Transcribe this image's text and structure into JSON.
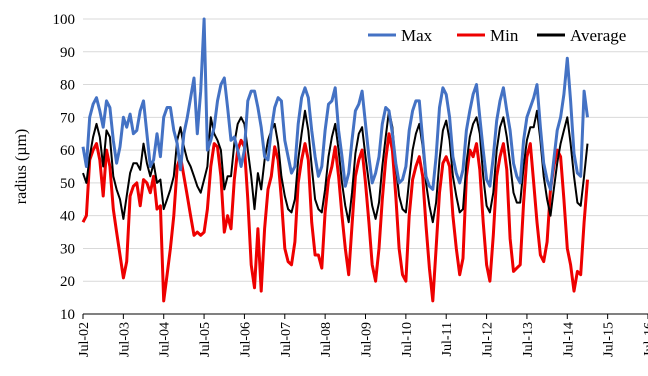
{
  "chart_data": {
    "type": "line",
    "ylabel": "radius (µm)",
    "ylim": [
      10,
      100
    ],
    "yticks": [
      "10",
      "20",
      "30",
      "40",
      "50",
      "60",
      "70",
      "80",
      "90",
      "100"
    ],
    "xlim": [
      "2002-07",
      "2016-07"
    ],
    "xticks": [
      "Jul-02",
      "Jul-03",
      "Jul-04",
      "Jul-05",
      "Jul-06",
      "Jul-07",
      "Jul-08",
      "Jul-09",
      "Jul-10",
      "Jul-11",
      "Jul-12",
      "Jul-13",
      "Jul-14",
      "Jul-15",
      "Jul-16"
    ],
    "grid": "horizontal",
    "legend_position": "top-right",
    "colors": {
      "Max": "#4472c4",
      "Min": "#ee0000",
      "Average": "#000000"
    },
    "x_start_month": "2002-07",
    "series": [
      {
        "name": "Max",
        "values": [
          61,
          55,
          70,
          74,
          76,
          72,
          67,
          75,
          73,
          63,
          56,
          61,
          70,
          67,
          71,
          65,
          66,
          72,
          75,
          65,
          55,
          57,
          65,
          58,
          70,
          73,
          73,
          66,
          62,
          54,
          65,
          70,
          76,
          82,
          65,
          78,
          100,
          60,
          63,
          67,
          75,
          80,
          82,
          73,
          63,
          64,
          60,
          55,
          60,
          75,
          78,
          78,
          73,
          67,
          58,
          57,
          66,
          73,
          76,
          75,
          63,
          58,
          53,
          55,
          68,
          76,
          79,
          76,
          66,
          58,
          52,
          55,
          66,
          74,
          75,
          79,
          66,
          58,
          49,
          53,
          63,
          72,
          74,
          78,
          68,
          58,
          50,
          53,
          58,
          68,
          73,
          72,
          65,
          56,
          50,
          51,
          55,
          66,
          72,
          75,
          75,
          63,
          52,
          49,
          48,
          58,
          73,
          79,
          77,
          70,
          58,
          53,
          50,
          54,
          66,
          72,
          77,
          80,
          70,
          60,
          51,
          49,
          58,
          69,
          75,
          79,
          72,
          66,
          56,
          52,
          50,
          63,
          70,
          73,
          76,
          80,
          67,
          56,
          51,
          48,
          57,
          66,
          70,
          77,
          88,
          75,
          59,
          53,
          52,
          78,
          70
        ]
      },
      {
        "name": "Min",
        "values": [
          38,
          40,
          57,
          60,
          62,
          57,
          46,
          60,
          55,
          42,
          35,
          28,
          21,
          26,
          46,
          49,
          50,
          43,
          51,
          50,
          47,
          52,
          42,
          43,
          14,
          22,
          30,
          40,
          55,
          58,
          52,
          46,
          40,
          34,
          35,
          34,
          35,
          42,
          55,
          62,
          61,
          52,
          35,
          40,
          36,
          51,
          60,
          63,
          61,
          45,
          25,
          18,
          36,
          17,
          36,
          48,
          52,
          61,
          57,
          45,
          30,
          26,
          25,
          32,
          50,
          57,
          62,
          57,
          38,
          28,
          28,
          24,
          41,
          51,
          55,
          61,
          52,
          40,
          30,
          22,
          37,
          52,
          57,
          60,
          50,
          38,
          25,
          20,
          30,
          45,
          57,
          65,
          60,
          46,
          30,
          22,
          20,
          40,
          51,
          55,
          58,
          52,
          37,
          24,
          14,
          30,
          47,
          56,
          58,
          55,
          40,
          30,
          22,
          27,
          52,
          60,
          58,
          62,
          54,
          38,
          25,
          20,
          34,
          52,
          58,
          62,
          54,
          33,
          23,
          24,
          25,
          44,
          58,
          62,
          50,
          38,
          28,
          26,
          32,
          48,
          55,
          60,
          58,
          45,
          30,
          25,
          17,
          23,
          22,
          38,
          51
        ]
      },
      {
        "name": "Average",
        "values": [
          53,
          50,
          58,
          64,
          68,
          64,
          55,
          66,
          64,
          52,
          48,
          45,
          39,
          46,
          53,
          56,
          56,
          54,
          62,
          56,
          52,
          56,
          50,
          51,
          42,
          45,
          48,
          52,
          63,
          67,
          61,
          57,
          55,
          52,
          49,
          47,
          51,
          55,
          70,
          65,
          63,
          60,
          48,
          52,
          52,
          62,
          68,
          70,
          68,
          60,
          52,
          42,
          53,
          48,
          57,
          63,
          66,
          68,
          62,
          52,
          46,
          42,
          41,
          45,
          57,
          65,
          72,
          66,
          55,
          45,
          42,
          41,
          48,
          58,
          64,
          68,
          60,
          50,
          43,
          38,
          47,
          59,
          65,
          67,
          58,
          50,
          43,
          39,
          44,
          55,
          64,
          72,
          67,
          55,
          46,
          42,
          41,
          51,
          60,
          65,
          68,
          61,
          50,
          43,
          38,
          44,
          57,
          66,
          69,
          63,
          52,
          46,
          41,
          42,
          56,
          64,
          68,
          70,
          65,
          52,
          43,
          41,
          47,
          60,
          67,
          70,
          64,
          56,
          47,
          44,
          44,
          55,
          63,
          67,
          67,
          72,
          63,
          52,
          45,
          40,
          48,
          56,
          62,
          66,
          70,
          62,
          52,
          44,
          43,
          52,
          62
        ]
      }
    ]
  }
}
